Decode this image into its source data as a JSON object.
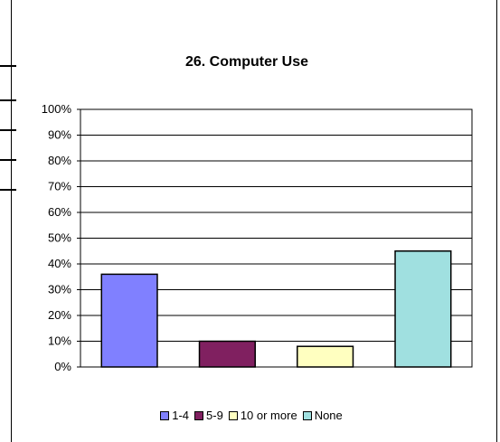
{
  "chart_data": {
    "type": "bar",
    "title": "26. Computer Use",
    "categories": [
      "1-4",
      "5-9",
      "10 or more",
      "None"
    ],
    "values": [
      36,
      10,
      8,
      45
    ],
    "colors": [
      "#8080ff",
      "#802060",
      "#ffffc0",
      "#a0e0e0"
    ],
    "ylim": [
      0,
      100
    ],
    "yticks": [
      "0%",
      "10%",
      "20%",
      "30%",
      "40%",
      "50%",
      "60%",
      "70%",
      "80%",
      "90%",
      "100%"
    ],
    "grid": true,
    "legend": "bottom"
  }
}
